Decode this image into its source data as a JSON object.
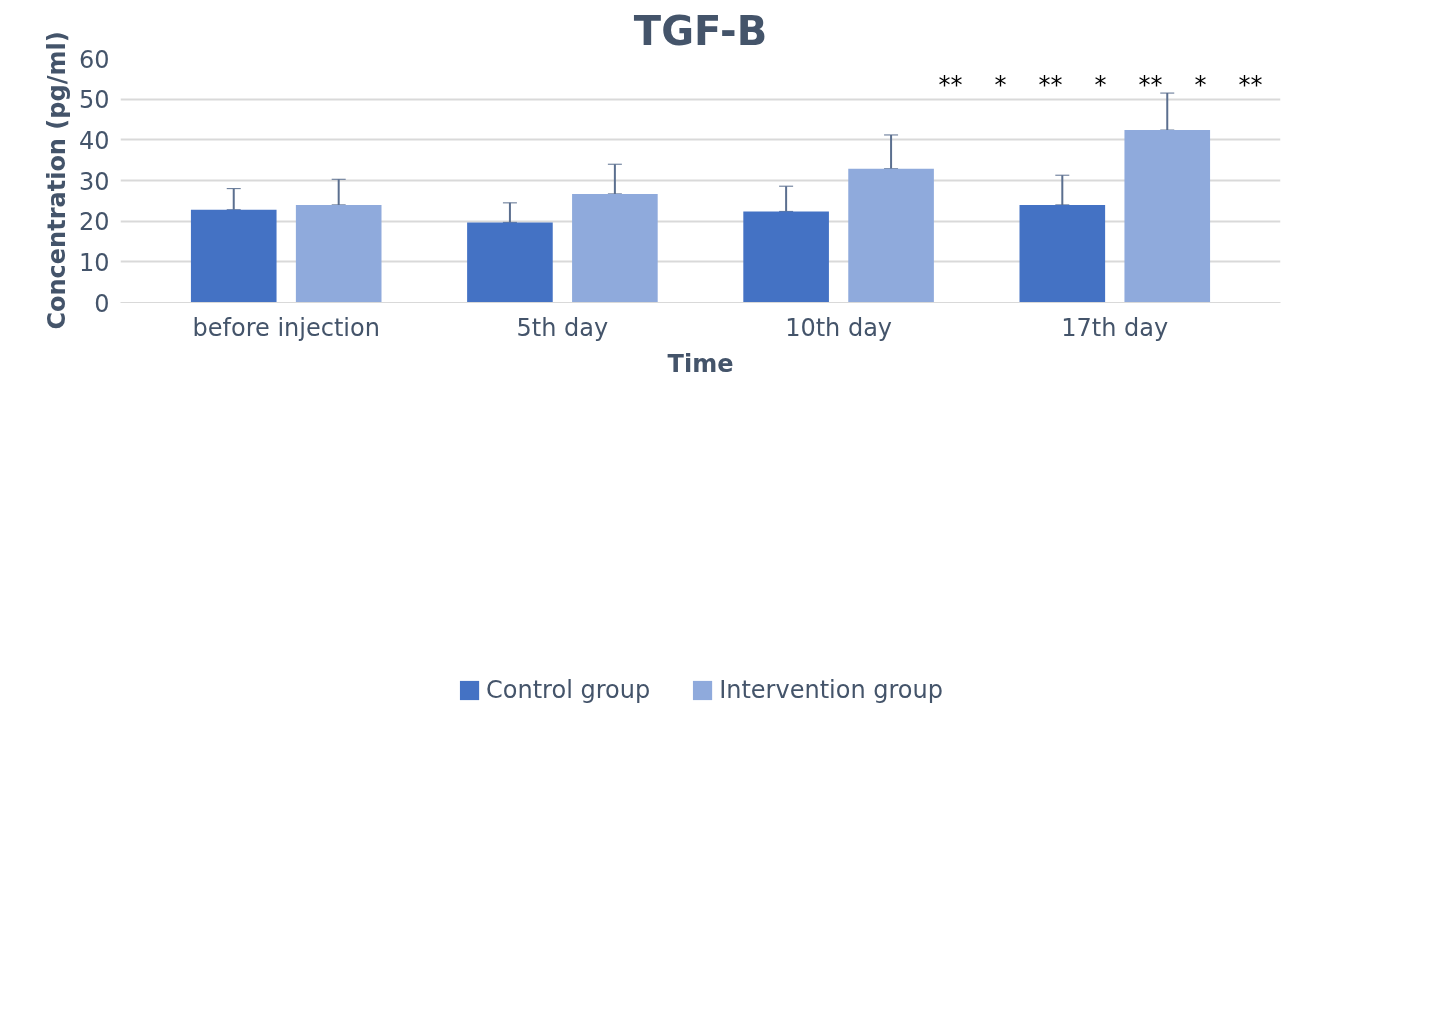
{
  "chart_data": {
    "type": "bar",
    "title": "TGF-B",
    "xlabel": "Time",
    "ylabel": "Concentration (pg/ml)",
    "categories": [
      "before injection",
      "5th day",
      "10th day",
      "17th day"
    ],
    "series": [
      {
        "name": "Control group",
        "color": "#4472c4",
        "values": [
          22.8,
          19.7,
          22.4,
          24.0
        ],
        "errors": [
          [
            22.8,
            28.0
          ],
          [
            19.7,
            24.5
          ],
          [
            22.4,
            28.6
          ],
          [
            24.0,
            31.3
          ]
        ]
      },
      {
        "name": "Intervention group",
        "color": "#8faadc",
        "values": [
          24.0,
          26.7,
          32.9,
          42.4
        ],
        "errors": [
          [
            24.0,
            30.3
          ],
          [
            26.7,
            34.0
          ],
          [
            32.9,
            41.2
          ],
          [
            42.4,
            51.5
          ]
        ]
      }
    ],
    "ylim": [
      0,
      60
    ],
    "yticks": [
      0,
      10,
      20,
      30,
      40,
      50,
      60
    ],
    "grid": "y",
    "legend": "bottom",
    "annotations": [
      "**",
      "*",
      "**",
      "*",
      "**",
      "*",
      "**"
    ]
  }
}
